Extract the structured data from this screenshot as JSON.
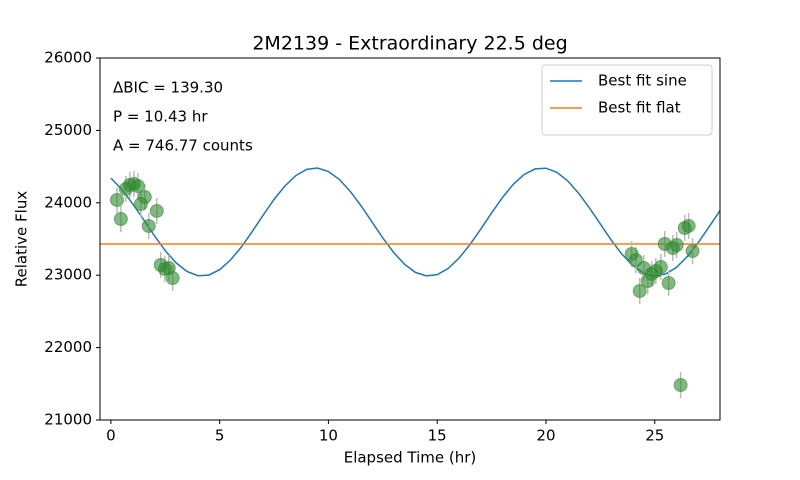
{
  "chart_data": {
    "type": "line",
    "title": "2M2139 - Extraordinary 22.5 deg",
    "x_label": "Elapsed Time (hr)",
    "y_label": "Relative Flux",
    "annotations": [
      "ΔBIC = 139.30",
      "P = 10.43 hr",
      "A = 746.77 counts"
    ],
    "xlim": [
      -0.5,
      28
    ],
    "ylim": [
      21000,
      26000
    ],
    "xticks": [
      0,
      5,
      10,
      15,
      20,
      25
    ],
    "yticks": [
      21000,
      22000,
      23000,
      24000,
      25000,
      26000
    ],
    "legend": "upper right",
    "series": [
      {
        "name": "Best fit sine",
        "color": "#1f77b4",
        "x": [
          0,
          0.5,
          1,
          1.5,
          2,
          2.5,
          3,
          3.5,
          4,
          4.5,
          5,
          5.5,
          6,
          6.5,
          7,
          7.5,
          8,
          8.5,
          9,
          9.5,
          10,
          10.5,
          11,
          11.5,
          12,
          12.5,
          13,
          13.5,
          14,
          14.5,
          15,
          15.5,
          16,
          16.5,
          17,
          17.5,
          18,
          18.5,
          19,
          19.5,
          20,
          20.5,
          21,
          21.5,
          22,
          22.5,
          23,
          23.5,
          24,
          24.5,
          25,
          25.5,
          26,
          26.5,
          27,
          27.5,
          28
        ],
        "values": [
          24341,
          24185,
          23988,
          23769,
          23545,
          23339,
          23170,
          23051,
          22993,
          23002,
          23076,
          23210,
          23390,
          23605,
          23830,
          24045,
          24232,
          24375,
          24461,
          24480,
          24433,
          24323,
          24159,
          23958,
          23737,
          23515,
          23314,
          23150,
          23039,
          22990,
          23008,
          23092,
          23234,
          23420,
          23636,
          23860,
          24073,
          24255,
          24391,
          24468,
          24478,
          24421,
          24303,
          24133,
          23928,
          23706,
          23485,
          23287,
          23131,
          23028,
          22989,
          23017,
          23108,
          23259,
          23449,
          23668,
          23891
        ]
      },
      {
        "name": "Best fit flat",
        "color": "#ff7f0e",
        "x": [
          -0.5,
          28
        ],
        "values": [
          23431,
          23431
        ]
      }
    ],
    "points": {
      "color": "#2e8b2e",
      "error_color": "#bbbbbb",
      "x": [
        0.28,
        0.46,
        0.69,
        0.87,
        1.06,
        1.24,
        1.38,
        1.56,
        1.74,
        2.11,
        2.29,
        2.48,
        2.66,
        2.84,
        23.94,
        24.13,
        24.31,
        24.5,
        24.68,
        24.86,
        25.05,
        25.28,
        25.46,
        25.64,
        25.83,
        26.01,
        26.19,
        26.38,
        26.56,
        26.74
      ],
      "values": [
        24039,
        23776,
        24191,
        24246,
        24260,
        24232,
        23983,
        24080,
        23680,
        23887,
        23141,
        23086,
        23099,
        22961,
        23293,
        23210,
        22782,
        23099,
        22920,
        23017,
        23058,
        23113,
        23431,
        22892,
        23376,
        23417,
        21483,
        23652,
        23680,
        23334
      ],
      "errors": [
        180,
        180,
        180,
        180,
        180,
        180,
        180,
        180,
        180,
        180,
        180,
        180,
        180,
        180,
        180,
        180,
        180,
        180,
        180,
        180,
        180,
        180,
        180,
        180,
        180,
        180,
        180,
        180,
        180,
        180
      ]
    }
  }
}
